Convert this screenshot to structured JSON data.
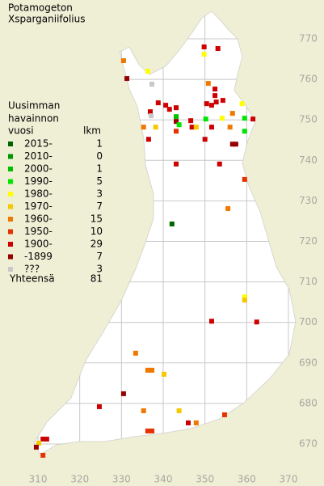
{
  "title": [
    "Potamogeton",
    "Xsparganiifolius"
  ],
  "legend": {
    "title": [
      "Uusimman",
      "havainnon",
      "vuosi"
    ],
    "count_header": "lkm",
    "entries": [
      {
        "label": "2015-",
        "count": 1,
        "color": "#006400"
      },
      {
        "label": "2010-",
        "count": 0,
        "color": "#009600"
      },
      {
        "label": "2000-",
        "count": 1,
        "color": "#00be00"
      },
      {
        "label": "1990-",
        "count": 5,
        "color": "#00e600"
      },
      {
        "label": "1980-",
        "count": 3,
        "color": "#ffff00"
      },
      {
        "label": "1970-",
        "count": 7,
        "color": "#f5c800"
      },
      {
        "label": "1960-",
        "count": 15,
        "color": "#f07800"
      },
      {
        "label": "1950-",
        "count": 10,
        "color": "#e63200"
      },
      {
        "label": "1900-",
        "count": 29,
        "color": "#cc0000"
      },
      {
        "label": "-1899",
        "count": 7,
        "color": "#960000"
      },
      {
        "label": "???",
        "count": 3,
        "color": "#c8c8c8"
      }
    ],
    "total_label": "Yhteensä",
    "total": 81
  },
  "axes": {
    "xlim": [
      310,
      370
    ],
    "xticks": [
      310,
      320,
      330,
      340,
      350,
      360,
      370
    ],
    "ylim": [
      670,
      770
    ],
    "yticks": [
      670,
      680,
      690,
      700,
      710,
      720,
      730,
      740,
      750,
      760,
      770
    ]
  },
  "points": [
    {
      "x": 349.8,
      "y": 768.0,
      "period": "1900-"
    },
    {
      "x": 349.8,
      "y": 766.2,
      "period": "1980-"
    },
    {
      "x": 353.1,
      "y": 767.6,
      "period": "1900-"
    },
    {
      "x": 330.5,
      "y": 764.6,
      "period": "1960-"
    },
    {
      "x": 336.3,
      "y": 762.0,
      "period": "1980-"
    },
    {
      "x": 331.3,
      "y": 760.2,
      "period": "-1899"
    },
    {
      "x": 337.3,
      "y": 758.8,
      "period": "???"
    },
    {
      "x": 350.8,
      "y": 759.0,
      "period": "1960-"
    },
    {
      "x": 352.4,
      "y": 757.6,
      "period": "1900-"
    },
    {
      "x": 352.4,
      "y": 756.0,
      "period": "1900-"
    },
    {
      "x": 340.6,
      "y": 753.6,
      "period": "1900-"
    },
    {
      "x": 341.5,
      "y": 752.6,
      "period": "1900-"
    },
    {
      "x": 343.1,
      "y": 753.0,
      "period": "1900-"
    },
    {
      "x": 350.4,
      "y": 754.0,
      "period": "1900-"
    },
    {
      "x": 351.6,
      "y": 753.6,
      "period": "1900-"
    },
    {
      "x": 352.7,
      "y": 754.4,
      "period": "1900-"
    },
    {
      "x": 354.3,
      "y": 754.8,
      "period": "1900-"
    },
    {
      "x": 356.6,
      "y": 751.6,
      "period": "1960-"
    },
    {
      "x": 358.9,
      "y": 754.0,
      "period": "1980-"
    },
    {
      "x": 336.9,
      "y": 752.0,
      "period": "1900-"
    },
    {
      "x": 338.8,
      "y": 754.2,
      "period": "1900-"
    },
    {
      "x": 337.1,
      "y": 751.0,
      "period": "???"
    },
    {
      "x": 343.1,
      "y": 750.8,
      "period": "2000-"
    },
    {
      "x": 343.1,
      "y": 749.6,
      "period": "-1899"
    },
    {
      "x": 346.6,
      "y": 749.8,
      "period": "1900-"
    },
    {
      "x": 350.2,
      "y": 750.2,
      "period": "1990-"
    },
    {
      "x": 354.1,
      "y": 750.4,
      "period": "1980-"
    },
    {
      "x": 359.5,
      "y": 750.4,
      "period": "1990-"
    },
    {
      "x": 361.5,
      "y": 750.2,
      "period": "1900-"
    },
    {
      "x": 335.3,
      "y": 748.2,
      "period": "1960-"
    },
    {
      "x": 338.2,
      "y": 748.2,
      "period": "1970-"
    },
    {
      "x": 343.8,
      "y": 748.8,
      "period": "1990-"
    },
    {
      "x": 346.9,
      "y": 748.2,
      "period": "1900-"
    },
    {
      "x": 347.9,
      "y": 748.2,
      "period": "1970-"
    },
    {
      "x": 351.6,
      "y": 748.2,
      "period": "1900-"
    },
    {
      "x": 356.0,
      "y": 748.2,
      "period": "1960-"
    },
    {
      "x": 359.5,
      "y": 747.2,
      "period": "1990-"
    },
    {
      "x": 343.1,
      "y": 747.2,
      "period": "1950-"
    },
    {
      "x": 350.0,
      "y": 745.2,
      "period": "1900-"
    },
    {
      "x": 356.6,
      "y": 744.0,
      "period": "-1899"
    },
    {
      "x": 357.4,
      "y": 744.0,
      "period": "-1899"
    },
    {
      "x": 336.5,
      "y": 745.2,
      "period": "1900-"
    },
    {
      "x": 343.1,
      "y": 739.1,
      "period": "1900-"
    },
    {
      "x": 353.5,
      "y": 739.1,
      "period": "1900-"
    },
    {
      "x": 359.5,
      "y": 735.3,
      "period": "1950-"
    },
    {
      "x": 355.5,
      "y": 728.1,
      "period": "1960-"
    },
    {
      "x": 342.1,
      "y": 724.3,
      "period": "2015-"
    },
    {
      "x": 359.5,
      "y": 706.3,
      "period": "1980-"
    },
    {
      "x": 359.5,
      "y": 705.5,
      "period": "1970-"
    },
    {
      "x": 351.6,
      "y": 700.3,
      "period": "1900-"
    },
    {
      "x": 362.4,
      "y": 700.1,
      "period": "1900-"
    },
    {
      "x": 333.4,
      "y": 692.4,
      "period": "1960-"
    },
    {
      "x": 336.3,
      "y": 688.2,
      "period": "1960-"
    },
    {
      "x": 337.3,
      "y": 688.2,
      "period": "1960-"
    },
    {
      "x": 340.2,
      "y": 687.2,
      "period": "1970-"
    },
    {
      "x": 330.5,
      "y": 682.4,
      "period": "-1899"
    },
    {
      "x": 324.7,
      "y": 679.2,
      "period": "1900-"
    },
    {
      "x": 335.3,
      "y": 678.2,
      "period": "1960-"
    },
    {
      "x": 343.8,
      "y": 678.2,
      "period": "1970-"
    },
    {
      "x": 354.7,
      "y": 677.2,
      "period": "1950-"
    },
    {
      "x": 346.0,
      "y": 675.2,
      "period": "1900-"
    },
    {
      "x": 347.9,
      "y": 675.2,
      "period": "1960-"
    },
    {
      "x": 336.3,
      "y": 673.2,
      "period": "1950-"
    },
    {
      "x": 337.3,
      "y": 673.2,
      "period": "1950-"
    },
    {
      "x": 311.2,
      "y": 671.2,
      "period": "1900-"
    },
    {
      "x": 312.1,
      "y": 671.2,
      "period": "1900-"
    },
    {
      "x": 310.2,
      "y": 670.2,
      "period": "1970-"
    },
    {
      "x": 309.6,
      "y": 669.2,
      "period": "-1899"
    },
    {
      "x": 311.2,
      "y": 667.2,
      "period": "1950-"
    }
  ]
}
